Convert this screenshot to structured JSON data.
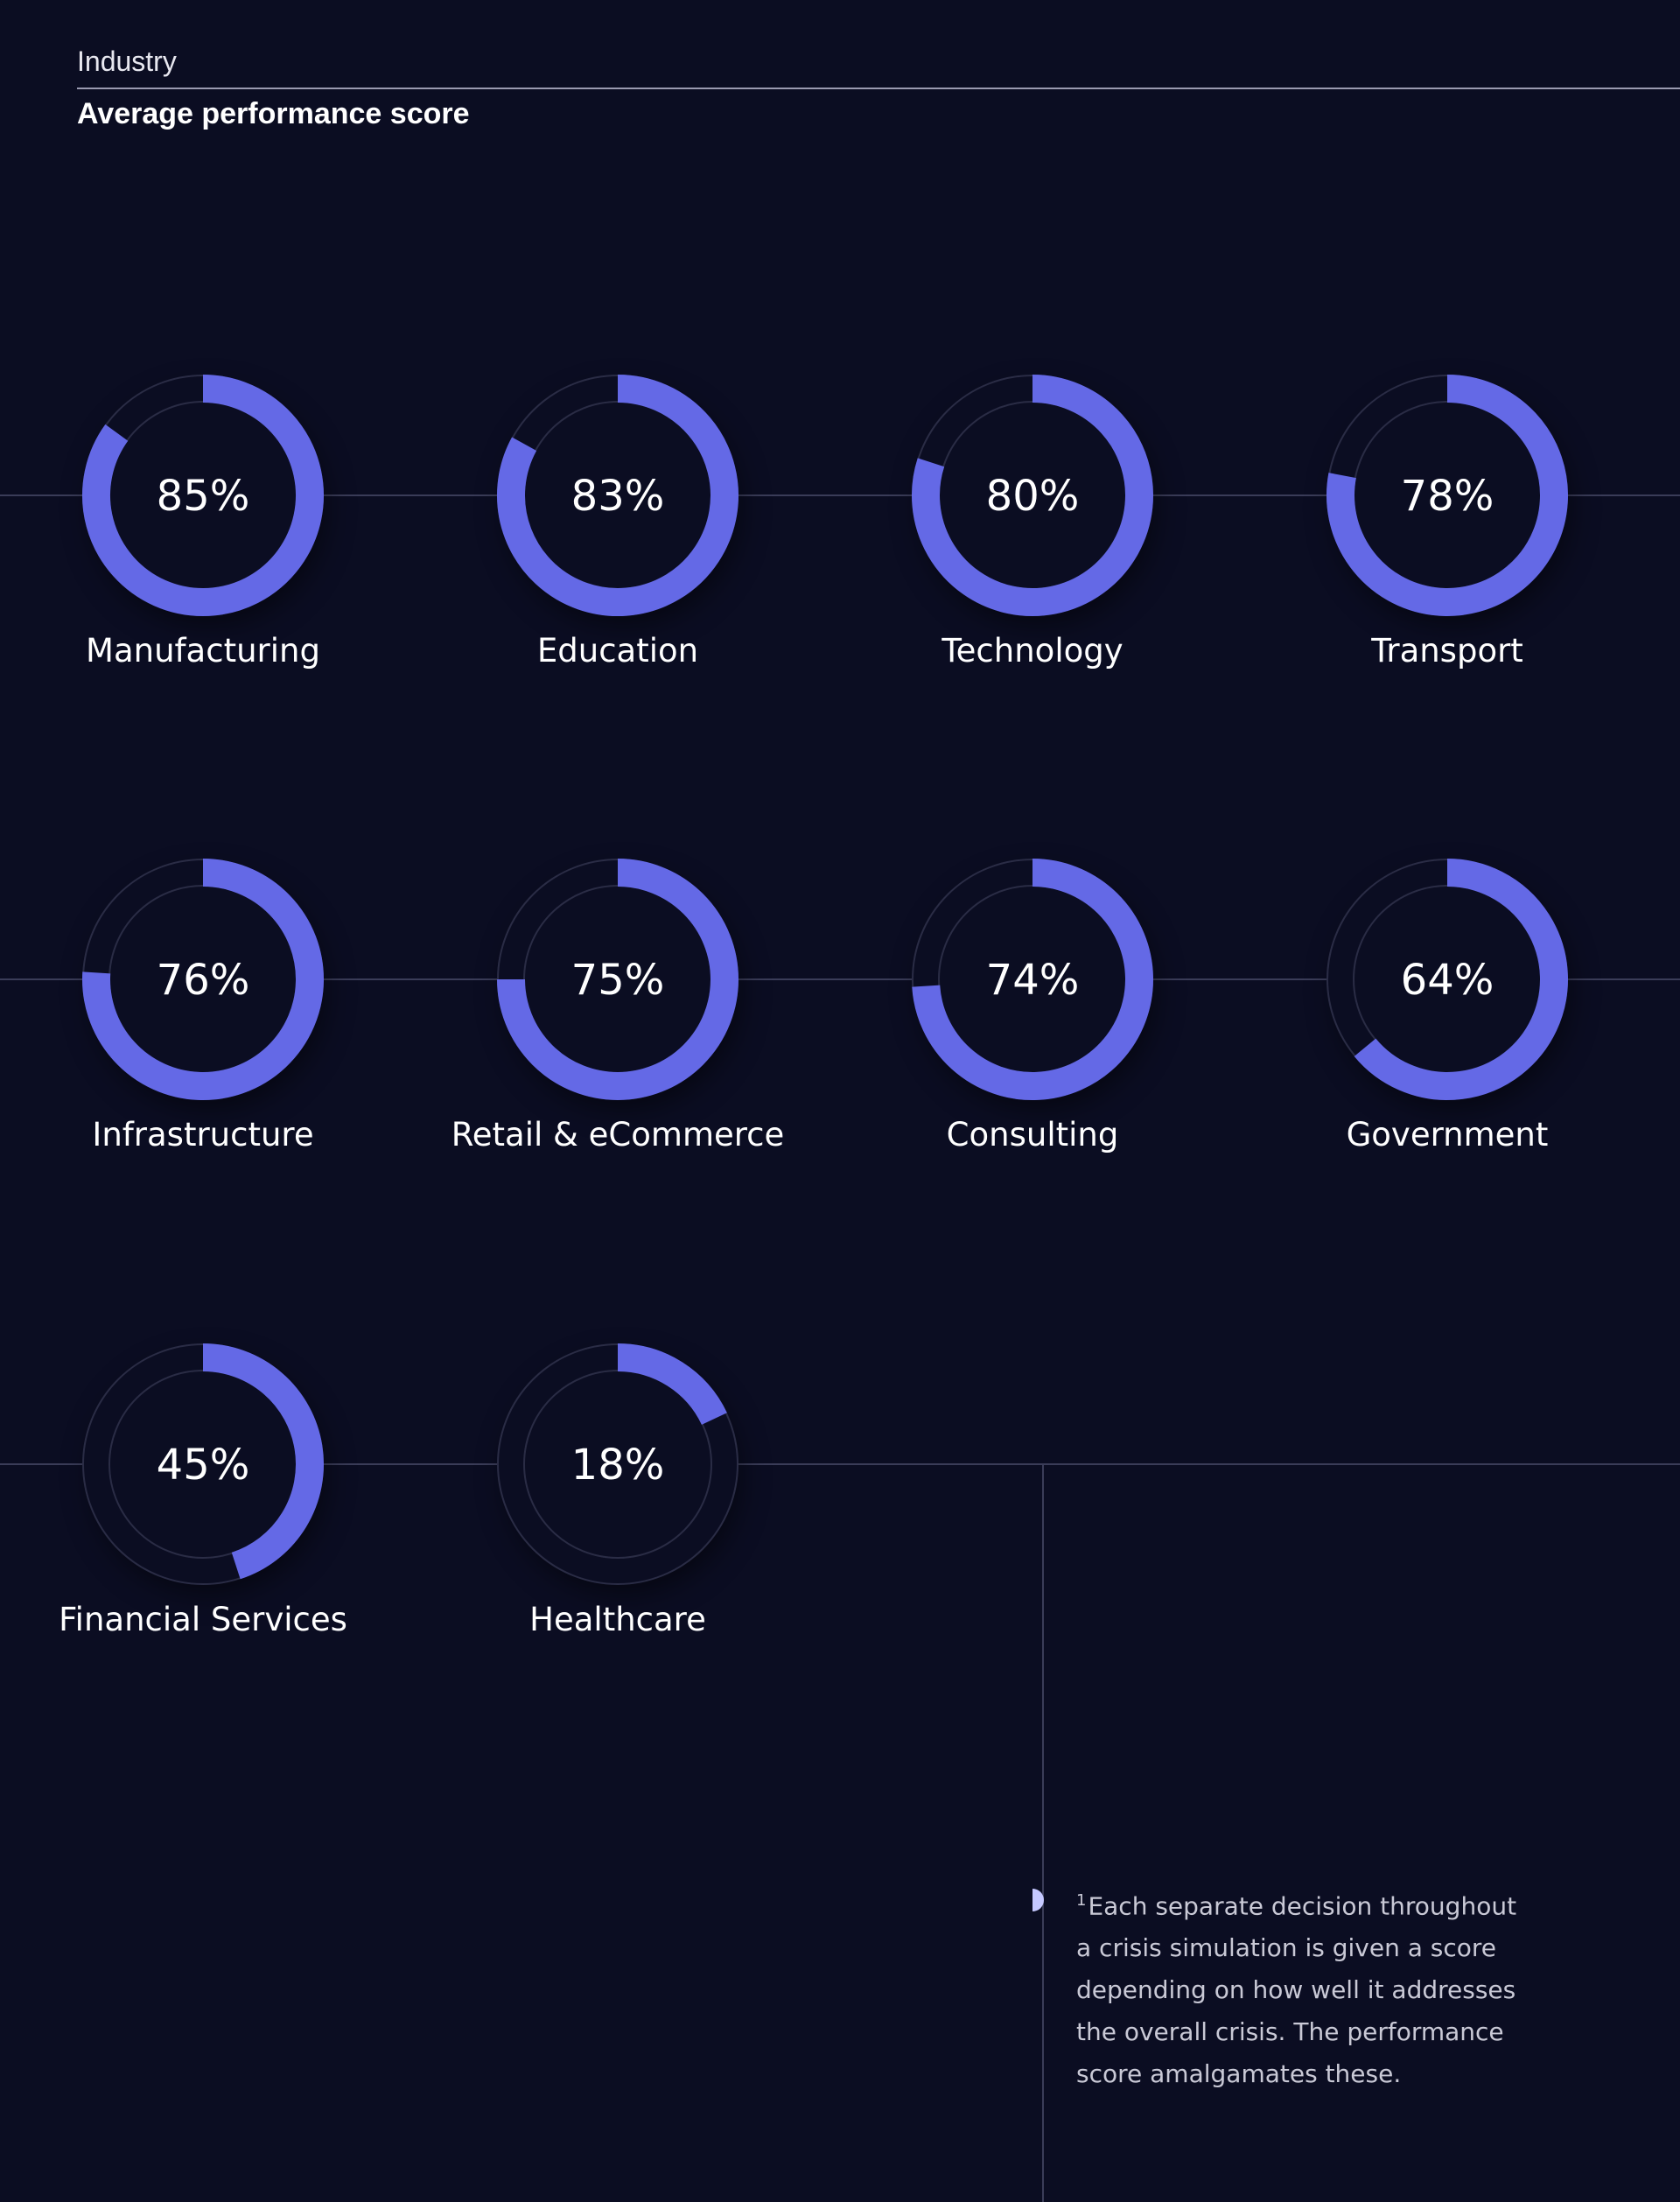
{
  "header": {
    "label": "Industry"
  },
  "chart_data": {
    "type": "radial-progress",
    "title": "Average performance score",
    "unit": "%",
    "max": 100,
    "colors": {
      "value_arc": "#6469e6",
      "track": "#2a2c45",
      "background": "#0b0d22"
    },
    "categories": [
      "Manufacturing",
      "Education",
      "Technology",
      "Transport",
      "Infrastructure",
      "Retail & eCommerce",
      "Consulting",
      "Government",
      "Financial Services",
      "Healthcare"
    ],
    "values": [
      85,
      83,
      80,
      78,
      76,
      75,
      74,
      64,
      45,
      18
    ]
  },
  "footnote": {
    "marker": "1",
    "text": "Each separate decision throughout a crisis simulation is given a score depending on how well it addresses the overall crisis. The performance score amalgamates these."
  }
}
